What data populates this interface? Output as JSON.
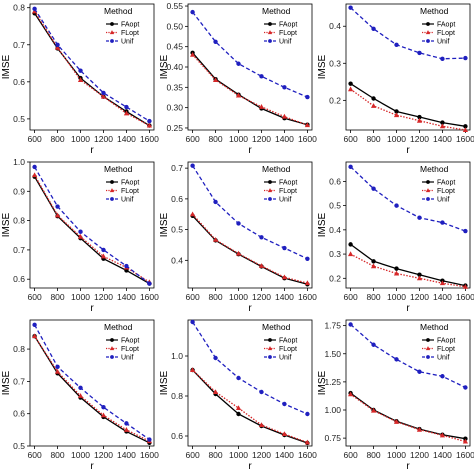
{
  "legend": {
    "title": "Method",
    "entries": [
      {
        "name": "FAopt",
        "color": "#000000",
        "marker": "circle",
        "dash": "solid"
      },
      {
        "name": "FLopt",
        "color": "#d62728",
        "marker": "triangle",
        "dash": "dotted"
      },
      {
        "name": "Unif",
        "color": "#1f1fbf",
        "marker": "circle",
        "dash": "dashed"
      }
    ]
  },
  "chart_data": [
    {
      "type": "line",
      "xlabel": "r",
      "ylabel": "IMSE",
      "x": [
        600,
        800,
        1000,
        1200,
        1400,
        1600
      ],
      "xticks": [
        600,
        800,
        1000,
        1200,
        1400,
        1600
      ],
      "ylim": [
        0.47,
        0.81
      ],
      "yticks": [
        0.5,
        0.6,
        0.7,
        0.8
      ],
      "legend_position": "top-right",
      "series": [
        {
          "name": "FAopt",
          "values": [
            0.785,
            0.69,
            0.61,
            0.56,
            0.52,
            0.482
          ]
        },
        {
          "name": "FLopt",
          "values": [
            0.79,
            0.692,
            0.605,
            0.56,
            0.515,
            0.482
          ]
        },
        {
          "name": "Unif",
          "values": [
            0.797,
            0.7,
            0.63,
            0.57,
            0.532,
            0.494
          ]
        }
      ]
    },
    {
      "type": "line",
      "xlabel": "r",
      "ylabel": "IMSE",
      "x": [
        600,
        800,
        1000,
        1200,
        1400,
        1600
      ],
      "xticks": [
        600,
        800,
        1000,
        1200,
        1400,
        1600
      ],
      "ylim": [
        0.245,
        0.555
      ],
      "yticks": [
        0.25,
        0.3,
        0.35,
        0.4,
        0.45,
        0.5,
        0.55
      ],
      "legend_position": "top-right",
      "series": [
        {
          "name": "FAopt",
          "values": [
            0.435,
            0.37,
            0.332,
            0.298,
            0.274,
            0.258
          ]
        },
        {
          "name": "FLopt",
          "values": [
            0.43,
            0.368,
            0.33,
            0.302,
            0.278,
            0.257
          ]
        },
        {
          "name": "Unif",
          "values": [
            0.535,
            0.462,
            0.408,
            0.377,
            0.35,
            0.326
          ]
        }
      ]
    },
    {
      "type": "line",
      "xlabel": "r",
      "ylabel": "IMSE",
      "x": [
        600,
        800,
        1000,
        1200,
        1400,
        1600
      ],
      "xticks": [
        600,
        800,
        1000,
        1200,
        1400,
        1600
      ],
      "ylim": [
        0.12,
        0.46
      ],
      "yticks": [
        0.2,
        0.3,
        0.4
      ],
      "legend_position": "top-right",
      "series": [
        {
          "name": "FAopt",
          "values": [
            0.245,
            0.205,
            0.17,
            0.155,
            0.14,
            0.13
          ]
        },
        {
          "name": "FLopt",
          "values": [
            0.23,
            0.185,
            0.16,
            0.145,
            0.13,
            0.12
          ]
        },
        {
          "name": "Unif",
          "values": [
            0.45,
            0.393,
            0.35,
            0.328,
            0.312,
            0.314
          ]
        }
      ]
    },
    {
      "type": "line",
      "xlabel": "r",
      "ylabel": "IMSE",
      "x": [
        600,
        800,
        1000,
        1200,
        1400,
        1600
      ],
      "xticks": [
        600,
        800,
        1000,
        1200,
        1400,
        1600
      ],
      "ylim": [
        0.57,
        1.0
      ],
      "yticks": [
        0.6,
        0.7,
        0.8,
        0.9,
        1.0
      ],
      "legend_position": "top-right",
      "series": [
        {
          "name": "FAopt",
          "values": [
            0.95,
            0.815,
            0.74,
            0.67,
            0.63,
            0.585
          ]
        },
        {
          "name": "FLopt",
          "values": [
            0.955,
            0.818,
            0.745,
            0.678,
            0.64,
            0.59
          ]
        },
        {
          "name": "Unif",
          "values": [
            0.983,
            0.848,
            0.762,
            0.7,
            0.645,
            0.585
          ]
        }
      ]
    },
    {
      "type": "line",
      "xlabel": "r",
      "ylabel": "IMSE",
      "x": [
        600,
        800,
        1000,
        1200,
        1400,
        1600
      ],
      "xticks": [
        600,
        800,
        1000,
        1200,
        1400,
        1600
      ],
      "ylim": [
        0.31,
        0.72
      ],
      "yticks": [
        0.4,
        0.5,
        0.6,
        0.7
      ],
      "legend_position": "top-right",
      "series": [
        {
          "name": "FAopt",
          "values": [
            0.545,
            0.465,
            0.42,
            0.38,
            0.342,
            0.322
          ]
        },
        {
          "name": "FLopt",
          "values": [
            0.55,
            0.467,
            0.422,
            0.382,
            0.345,
            0.326
          ]
        },
        {
          "name": "Unif",
          "values": [
            0.708,
            0.59,
            0.52,
            0.475,
            0.44,
            0.405
          ]
        }
      ]
    },
    {
      "type": "line",
      "xlabel": "r",
      "ylabel": "IMSE",
      "x": [
        600,
        800,
        1000,
        1200,
        1400,
        1600
      ],
      "xticks": [
        600,
        800,
        1000,
        1200,
        1400,
        1600
      ],
      "ylim": [
        0.16,
        0.68
      ],
      "yticks": [
        0.2,
        0.3,
        0.4,
        0.5,
        0.6
      ],
      "legend_position": "top-right",
      "series": [
        {
          "name": "FAopt",
          "values": [
            0.34,
            0.27,
            0.24,
            0.215,
            0.19,
            0.17
          ]
        },
        {
          "name": "FLopt",
          "values": [
            0.3,
            0.25,
            0.22,
            0.2,
            0.18,
            0.165
          ]
        },
        {
          "name": "Unif",
          "values": [
            0.66,
            0.57,
            0.5,
            0.45,
            0.43,
            0.395
          ]
        }
      ]
    },
    {
      "type": "line",
      "xlabel": "r",
      "ylabel": "IMSE",
      "x": [
        600,
        800,
        1000,
        1200,
        1400,
        1600
      ],
      "xticks": [
        600,
        800,
        1000,
        1200,
        1400,
        1600
      ],
      "ylim": [
        0.5,
        0.89
      ],
      "yticks": [
        0.5,
        0.6,
        0.7,
        0.8
      ],
      "legend_position": "top-right",
      "series": [
        {
          "name": "FAopt",
          "values": [
            0.84,
            0.725,
            0.65,
            0.59,
            0.545,
            0.51
          ]
        },
        {
          "name": "FLopt",
          "values": [
            0.84,
            0.73,
            0.655,
            0.595,
            0.55,
            0.515
          ]
        },
        {
          "name": "Unif",
          "values": [
            0.875,
            0.745,
            0.68,
            0.62,
            0.57,
            0.52
          ]
        }
      ]
    },
    {
      "type": "line",
      "xlabel": "r",
      "ylabel": "IMSE",
      "x": [
        600,
        800,
        1000,
        1200,
        1400,
        1600
      ],
      "xticks": [
        600,
        800,
        1000,
        1200,
        1400,
        1600
      ],
      "ylim": [
        0.55,
        1.18
      ],
      "yticks": [
        0.6,
        0.8,
        1.0
      ],
      "legend_position": "top-right",
      "series": [
        {
          "name": "FAopt",
          "values": [
            0.93,
            0.81,
            0.71,
            0.65,
            0.605,
            0.565
          ]
        },
        {
          "name": "FLopt",
          "values": [
            0.93,
            0.82,
            0.74,
            0.655,
            0.61,
            0.568
          ]
        },
        {
          "name": "Unif",
          "values": [
            1.17,
            0.99,
            0.89,
            0.82,
            0.76,
            0.71
          ]
        }
      ]
    },
    {
      "type": "line",
      "xlabel": "r",
      "ylabel": "IMSE",
      "x": [
        600,
        800,
        1000,
        1200,
        1400,
        1600
      ],
      "xticks": [
        600,
        800,
        1000,
        1200,
        1400,
        1600
      ],
      "ylim": [
        0.68,
        1.8
      ],
      "yticks": [
        0.75,
        1.0,
        1.25,
        1.5,
        1.75
      ],
      "legend_position": "top-right",
      "series": [
        {
          "name": "FAopt",
          "values": [
            1.15,
            1.0,
            0.9,
            0.83,
            0.78,
            0.745
          ]
        },
        {
          "name": "FLopt",
          "values": [
            1.14,
            0.995,
            0.895,
            0.825,
            0.775,
            0.72
          ]
        },
        {
          "name": "Unif",
          "values": [
            1.76,
            1.58,
            1.45,
            1.34,
            1.3,
            1.2
          ]
        }
      ]
    }
  ]
}
